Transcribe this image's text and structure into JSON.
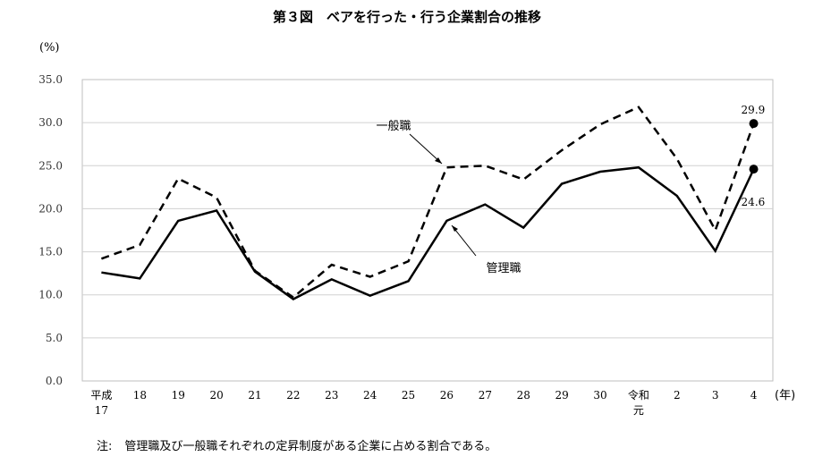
{
  "title": "第３図　ベアを行った・行う企業割合の推移",
  "unit_label": "(%)",
  "year_unit": "(年)",
  "note": {
    "prefix": "注:",
    "text": "管理職及び一般職それぞれの定昇制度がある企業に占める割合である。"
  },
  "chart_data": {
    "type": "line",
    "title": "第３図　ベアを行った・行う企業割合の推移",
    "ylabel": "(%)",
    "xlabel": "(年)",
    "ylim": [
      0,
      35
    ],
    "yticks": [
      "0.0",
      "5.0",
      "10.0",
      "15.0",
      "20.0",
      "25.0",
      "30.0",
      "35.0"
    ],
    "ytick_values": [
      0,
      5,
      10,
      15,
      20,
      25,
      30,
      35
    ],
    "categories": [
      "平成17",
      "18",
      "19",
      "20",
      "21",
      "22",
      "23",
      "24",
      "25",
      "26",
      "27",
      "28",
      "29",
      "30",
      "令和元",
      "2",
      "3",
      "4"
    ],
    "category_lines": [
      [
        "平成",
        "17"
      ],
      [
        "18"
      ],
      [
        "19"
      ],
      [
        "20"
      ],
      [
        "21"
      ],
      [
        "22"
      ],
      [
        "23"
      ],
      [
        "24"
      ],
      [
        "25"
      ],
      [
        "26"
      ],
      [
        "27"
      ],
      [
        "28"
      ],
      [
        "29"
      ],
      [
        "30"
      ],
      [
        "令和",
        "元"
      ],
      [
        "2"
      ],
      [
        "3"
      ],
      [
        "4"
      ]
    ],
    "grid": "horizontal",
    "series": [
      {
        "name": "一般職",
        "style": "dashed",
        "color": "#000000",
        "values": [
          14.2,
          15.8,
          23.5,
          21.3,
          12.8,
          9.7,
          13.5,
          12.1,
          13.9,
          24.8,
          25.0,
          23.4,
          26.8,
          29.8,
          31.8,
          25.8,
          17.5,
          29.9
        ],
        "end_label": "29.9"
      },
      {
        "name": "管理職",
        "style": "solid",
        "color": "#000000",
        "values": [
          12.6,
          11.9,
          18.6,
          19.8,
          12.7,
          9.5,
          11.8,
          9.9,
          11.6,
          18.6,
          20.5,
          17.8,
          22.9,
          24.3,
          24.8,
          21.5,
          15.1,
          24.6
        ],
        "end_label": "24.6"
      }
    ]
  }
}
